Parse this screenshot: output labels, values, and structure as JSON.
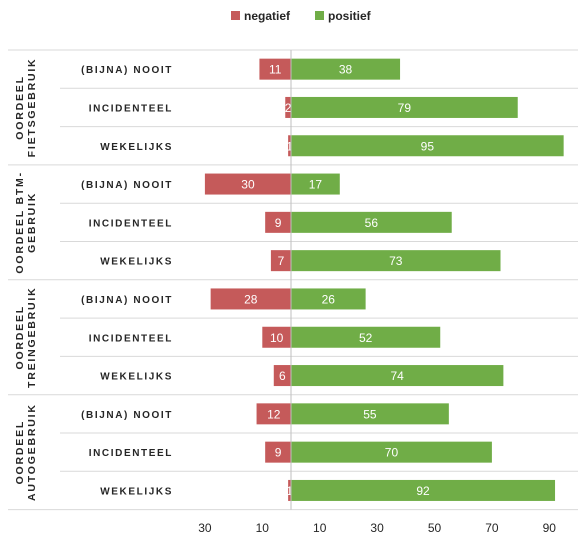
{
  "chart_data": {
    "type": "bar",
    "orientation": "horizontal-diverging",
    "legend": {
      "position": "top",
      "entries": [
        {
          "name": "negatief",
          "color": "#c55a5a"
        },
        {
          "name": "positief",
          "color": "#70ad47"
        }
      ]
    },
    "series": [
      {
        "name": "negatief",
        "color": "#c55a5a"
      },
      {
        "name": "positief",
        "color": "#70ad47"
      }
    ],
    "groups": [
      {
        "label": [
          "OORDEEL",
          "FIETSGEBRUIK"
        ],
        "rows": [
          {
            "category": "(BIJNA) NOOIT",
            "negatief": 11,
            "positief": 38
          },
          {
            "category": "INCIDENTEEL",
            "negatief": 2,
            "positief": 79
          },
          {
            "category": "WEKELIJKS",
            "negatief": 1,
            "positief": 95
          }
        ]
      },
      {
        "label": [
          "OORDEEL BTM-",
          "GEBRUIK"
        ],
        "rows": [
          {
            "category": "(BIJNA) NOOIT",
            "negatief": 30,
            "positief": 17
          },
          {
            "category": "INCIDENTEEL",
            "negatief": 9,
            "positief": 56
          },
          {
            "category": "WEKELIJKS",
            "negatief": 7,
            "positief": 73
          }
        ]
      },
      {
        "label": [
          "OORDEEL",
          "TREINGEBRUIK"
        ],
        "rows": [
          {
            "category": "(BIJNA) NOOIT",
            "negatief": 28,
            "positief": 26
          },
          {
            "category": "INCIDENTEEL",
            "negatief": 10,
            "positief": 52
          },
          {
            "category": "WEKELIJKS",
            "negatief": 6,
            "positief": 74
          }
        ]
      },
      {
        "label": [
          "OORDEEL",
          "AUTOGEBRUIK"
        ],
        "rows": [
          {
            "category": "(BIJNA) NOOIT",
            "negatief": 12,
            "positief": 55
          },
          {
            "category": "INCIDENTEEL",
            "negatief": 9,
            "positief": 70
          },
          {
            "category": "WEKELIJKS",
            "negatief": 1,
            "positief": 92
          }
        ]
      }
    ],
    "xticks": [
      "30",
      "10",
      "10",
      "30",
      "50",
      "70",
      "90"
    ],
    "xlim": [
      -30,
      95
    ],
    "grid": false,
    "title": "",
    "xlabel": "",
    "ylabel": ""
  }
}
